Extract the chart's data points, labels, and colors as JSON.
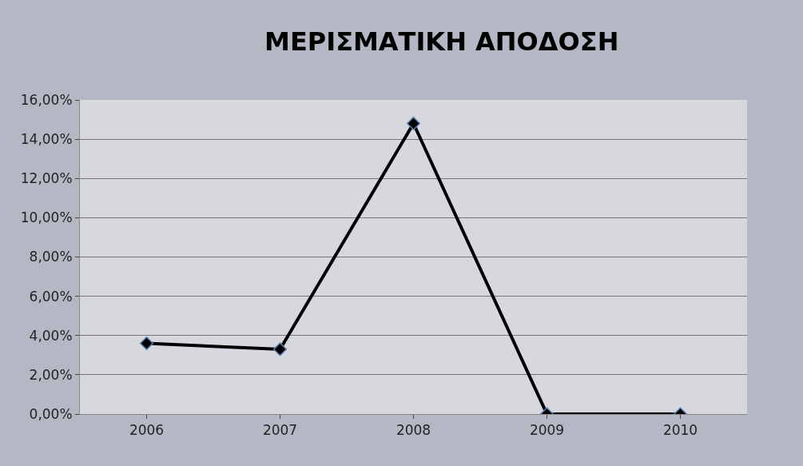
{
  "chart_data": {
    "type": "line",
    "title": "ΜΕΡΙΣΜΑΤΙΚΗ ΑΠΟΔΟΣΗ",
    "categories": [
      "2006",
      "2007",
      "2008",
      "2009",
      "2010"
    ],
    "series": [
      {
        "color": "#000000",
        "values": [
          3.6,
          3.3,
          14.8,
          0,
          0
        ]
      }
    ],
    "ylim": [
      0,
      16
    ],
    "yticks": [
      {
        "value": 0,
        "label": "0,00%"
      },
      {
        "value": 2,
        "label": "2,00%"
      },
      {
        "value": 4,
        "label": "4,00%"
      },
      {
        "value": 6,
        "label": "6,00%"
      },
      {
        "value": 8,
        "label": "8,00%"
      },
      {
        "value": 10,
        "label": "10,00%"
      },
      {
        "value": 12,
        "label": "12,00%"
      },
      {
        "value": 14,
        "label": "14,00%"
      },
      {
        "value": 16,
        "label": "16,00%"
      }
    ],
    "grid": "y",
    "marker": "diamond",
    "line_style": "solid"
  }
}
